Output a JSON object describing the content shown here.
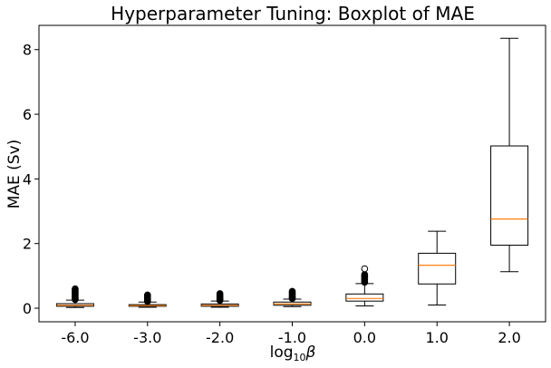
{
  "chart_data": {
    "type": "boxplot",
    "title": "Hyperparameter Tuning: Boxplot of MAE",
    "xlabel": {
      "base": "log",
      "subscript": "10",
      "symbol": "β"
    },
    "ylabel": "MAE (Sv)",
    "ylim": [
      -0.42,
      8.75
    ],
    "yticks": [
      0,
      2,
      4,
      6,
      8
    ],
    "grid": false,
    "categories": [
      "-6.0",
      "-3.0",
      "-2.0",
      "-1.0",
      "0.0",
      "1.0",
      "2.0"
    ],
    "boxes": [
      {
        "label": "-6.0",
        "whisker_low": 0.02,
        "q1": 0.06,
        "median": 0.09,
        "q3": 0.14,
        "whisker_high": 0.25,
        "outliers": [
          0.27,
          0.3,
          0.33,
          0.36,
          0.4,
          0.44,
          0.48,
          0.52,
          0.56,
          0.6
        ]
      },
      {
        "label": "-3.0",
        "whisker_low": 0.03,
        "q1": 0.06,
        "median": 0.08,
        "q3": 0.11,
        "whisker_high": 0.19,
        "outliers": [
          0.21,
          0.24,
          0.27,
          0.3,
          0.33,
          0.37,
          0.41
        ]
      },
      {
        "label": "-2.0",
        "whisker_low": 0.03,
        "q1": 0.06,
        "median": 0.09,
        "q3": 0.13,
        "whisker_high": 0.22,
        "outliers": [
          0.24,
          0.27,
          0.3,
          0.33,
          0.37,
          0.41,
          0.45
        ]
      },
      {
        "label": "-1.0",
        "whisker_low": 0.05,
        "q1": 0.09,
        "median": 0.13,
        "q3": 0.19,
        "whisker_high": 0.28,
        "outliers": [
          0.3,
          0.33,
          0.36,
          0.4,
          0.44,
          0.48,
          0.52
        ]
      },
      {
        "label": "0.0",
        "whisker_low": 0.07,
        "q1": 0.22,
        "median": 0.3,
        "q3": 0.44,
        "whisker_high": 0.76,
        "outliers": [
          0.8,
          0.84,
          0.88,
          0.92,
          0.96,
          1.0,
          1.04,
          1.22
        ]
      },
      {
        "label": "1.0",
        "whisker_low": 0.1,
        "q1": 0.75,
        "median": 1.33,
        "q3": 1.7,
        "whisker_high": 2.38,
        "outliers": []
      },
      {
        "label": "2.0",
        "whisker_low": 1.13,
        "q1": 1.95,
        "median": 2.76,
        "q3": 5.02,
        "whisker_high": 8.35,
        "outliers": []
      }
    ],
    "colors": {
      "box": "#000000",
      "median": "#ff7f0e",
      "outlier_fill": "#000000"
    }
  }
}
